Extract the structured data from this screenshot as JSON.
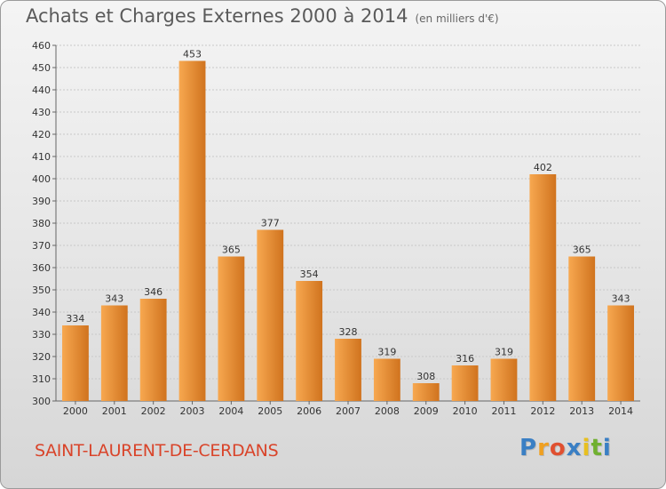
{
  "header": {
    "title": "Achats et Charges Externes 2000 à 2014",
    "subtitle": "(en milliers d'€)"
  },
  "footer": {
    "commune": "SAINT-LAURENT-DE-CERDANS",
    "logo": {
      "letters": [
        "P",
        "r",
        "o",
        "x",
        "i",
        "t",
        "i"
      ],
      "colors": [
        "#3a7fc4",
        "#f0a020",
        "#e05030",
        "#3a7fc4",
        "#e8c020",
        "#70b030",
        "#3a7fc4"
      ]
    }
  },
  "colors": {
    "bar_light": "#f7a850",
    "bar_dark": "#d0731e",
    "grid": "#c8c8c8",
    "commune_text": "#d9442a"
  },
  "chart_data": {
    "type": "bar",
    "title": "Achats et Charges Externes 2000 à 2014",
    "subtitle": "(en milliers d'€)",
    "categories": [
      "2000",
      "2001",
      "2002",
      "2003",
      "2004",
      "2005",
      "2006",
      "2007",
      "2008",
      "2009",
      "2010",
      "2011",
      "2012",
      "2013",
      "2014"
    ],
    "values": [
      334,
      343,
      346,
      453,
      365,
      377,
      354,
      328,
      319,
      308,
      316,
      319,
      402,
      365,
      343
    ],
    "ylim": [
      300,
      460
    ],
    "yticks": [
      300,
      310,
      320,
      330,
      340,
      350,
      360,
      370,
      380,
      390,
      400,
      410,
      420,
      430,
      440,
      450,
      460
    ],
    "grid": true,
    "xlabel": "",
    "ylabel": ""
  }
}
